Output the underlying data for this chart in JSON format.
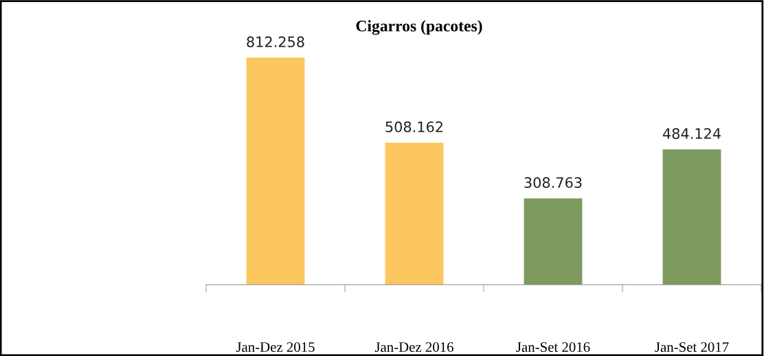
{
  "chart_data": {
    "type": "bar",
    "title": "Cigarros (pacotes)",
    "categories": [
      "Jan-Dez 2015",
      "Jan-Dez 2016",
      "Jan-Set 2016",
      "Jan-Set 2017"
    ],
    "values": [
      812258,
      508162,
      308763,
      484124
    ],
    "colors": [
      "#fbc75e",
      "#fbc75e",
      "#7c9a5e",
      "#7c9a5e"
    ],
    "value_labels": [
      "812.258",
      "508.162",
      "308.763",
      "484.124"
    ],
    "grid": false,
    "legend": false
  }
}
